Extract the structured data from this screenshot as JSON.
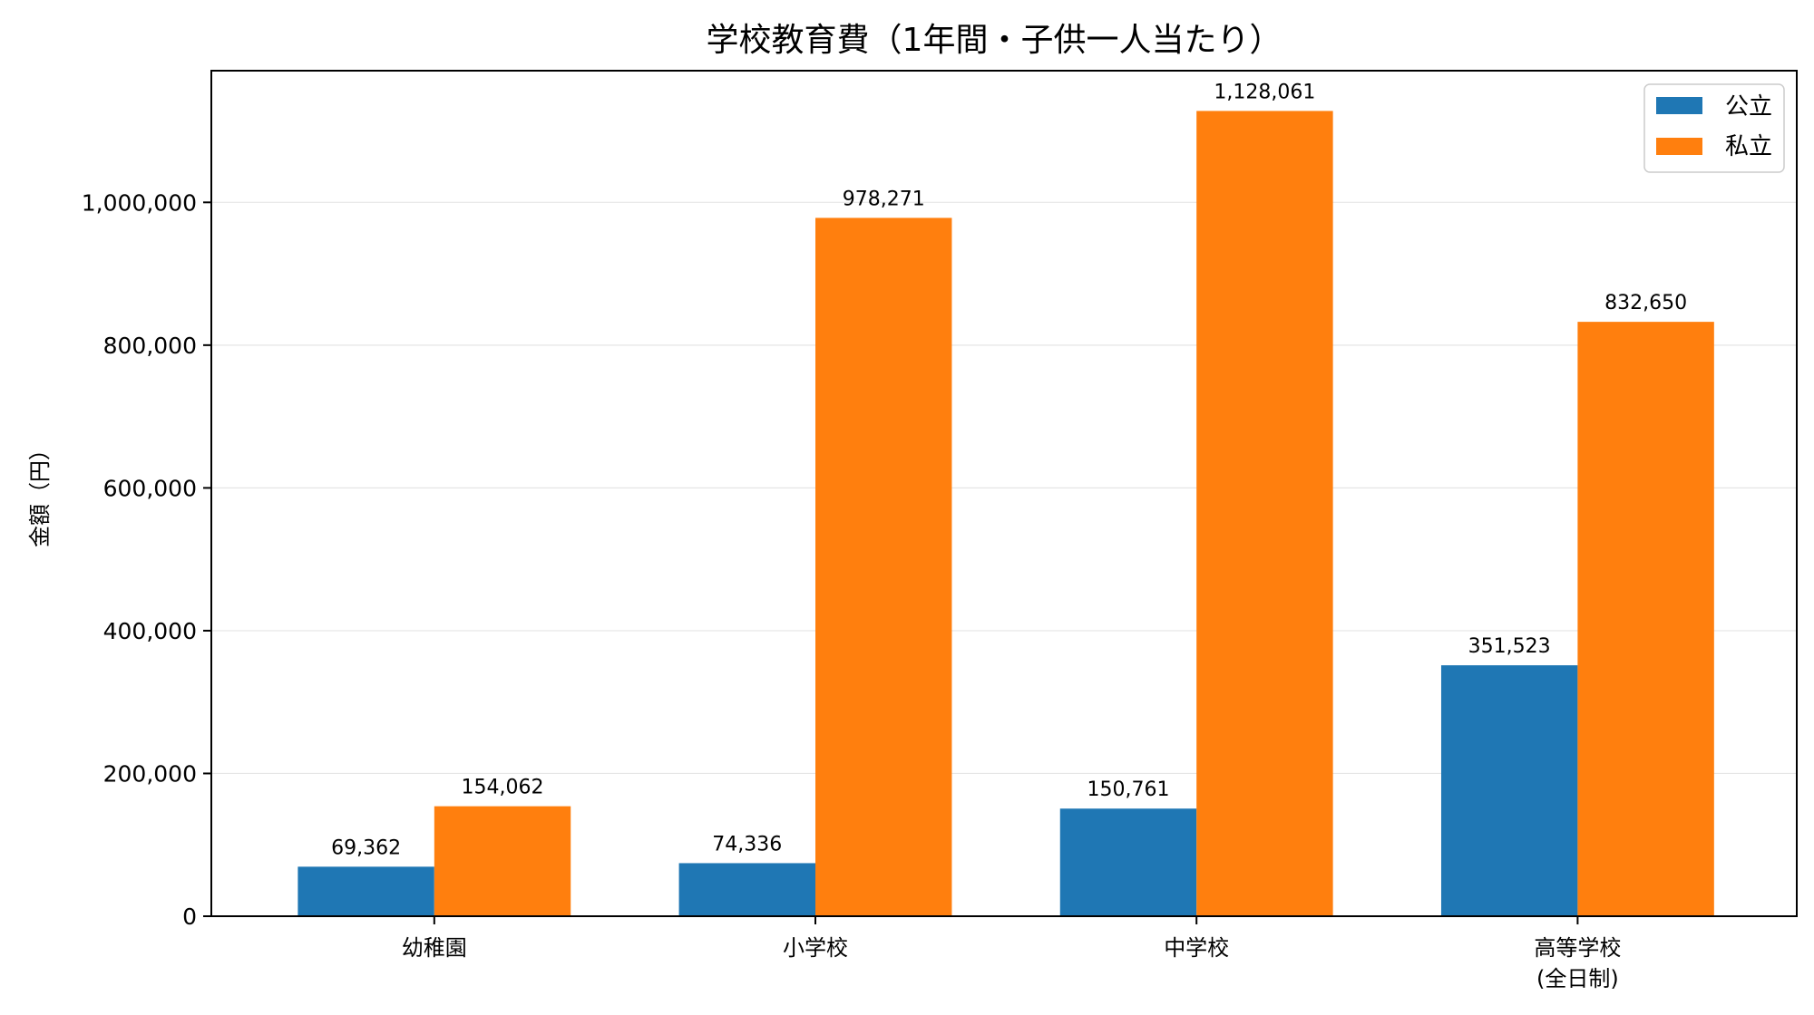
{
  "chart_data": {
    "type": "bar",
    "title": "学校教育費（1年間・子供一人当たり）",
    "xlabel": "",
    "ylabel": "金額（円）",
    "categories": [
      [
        "幼稚園"
      ],
      [
        "小学校"
      ],
      [
        "中学校"
      ],
      [
        "高等学校",
        "(全日制)"
      ]
    ],
    "series": [
      {
        "name": "公立",
        "color": "#1f77b4",
        "values": [
          69362,
          74336,
          150761,
          351523
        ]
      },
      {
        "name": "私立",
        "color": "#ff7f0e",
        "values": [
          154062,
          978271,
          1128061,
          832650
        ]
      }
    ],
    "data_labels": [
      [
        "69,362",
        "74,336",
        "150,761",
        "351,523"
      ],
      [
        "154,062",
        "978,271",
        "1,128,061",
        "832,650"
      ]
    ],
    "yticks": [
      0,
      200000,
      400000,
      600000,
      800000,
      1000000
    ],
    "ytick_labels": [
      "0",
      "200,000",
      "400,000",
      "600,000",
      "800,000",
      "1,000,000"
    ],
    "ylim": [
      0,
      1184464
    ],
    "grid": true,
    "legend_position": "top-right"
  }
}
